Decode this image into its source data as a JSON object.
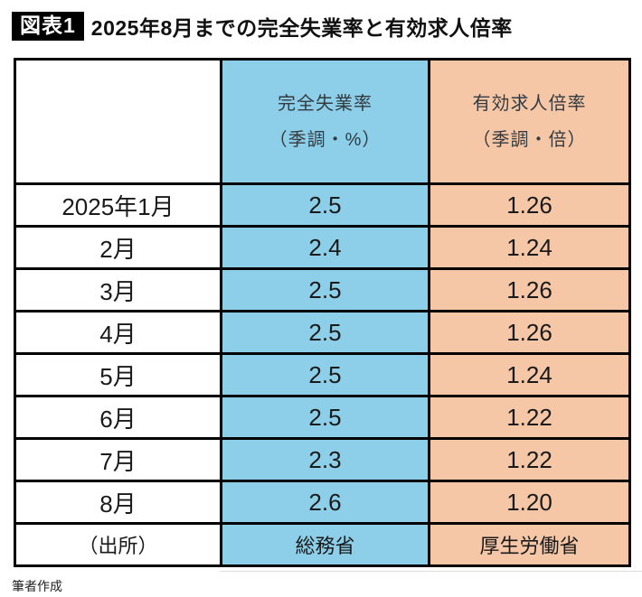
{
  "figure": {
    "badge": "図表1",
    "title": "2025年8月までの完全失業率と有効求人倍率",
    "caption": "筆者作成"
  },
  "colors": {
    "unemployment_column": "#8DCFE9",
    "jobs_column": "#F5C7A7",
    "border": "#000000",
    "badge_bg": "#000000",
    "badge_text": "#FFFFFF"
  },
  "chart_data": {
    "type": "table",
    "title": "2025年8月までの完全失業率と有効求人倍率",
    "columns": [
      {
        "line1": "完全失業率",
        "line2": "（季調・%）"
      },
      {
        "line1": "有効求人倍率",
        "line2": "（季調・倍）"
      }
    ],
    "rows": [
      {
        "label": "2025年1月",
        "unemployment_rate": "2.5",
        "job_openings_ratio": "1.26"
      },
      {
        "label": "2月",
        "unemployment_rate": "2.4",
        "job_openings_ratio": "1.24"
      },
      {
        "label": "3月",
        "unemployment_rate": "2.5",
        "job_openings_ratio": "1.26"
      },
      {
        "label": "4月",
        "unemployment_rate": "2.5",
        "job_openings_ratio": "1.26"
      },
      {
        "label": "5月",
        "unemployment_rate": "2.5",
        "job_openings_ratio": "1.24"
      },
      {
        "label": "6月",
        "unemployment_rate": "2.5",
        "job_openings_ratio": "1.22"
      },
      {
        "label": "7月",
        "unemployment_rate": "2.3",
        "job_openings_ratio": "1.22"
      },
      {
        "label": "8月",
        "unemployment_rate": "2.6",
        "job_openings_ratio": "1.20"
      }
    ],
    "source_row": {
      "label": "（出所）",
      "unemployment_source": "総務省",
      "jobs_source": "厚生労働省"
    }
  }
}
